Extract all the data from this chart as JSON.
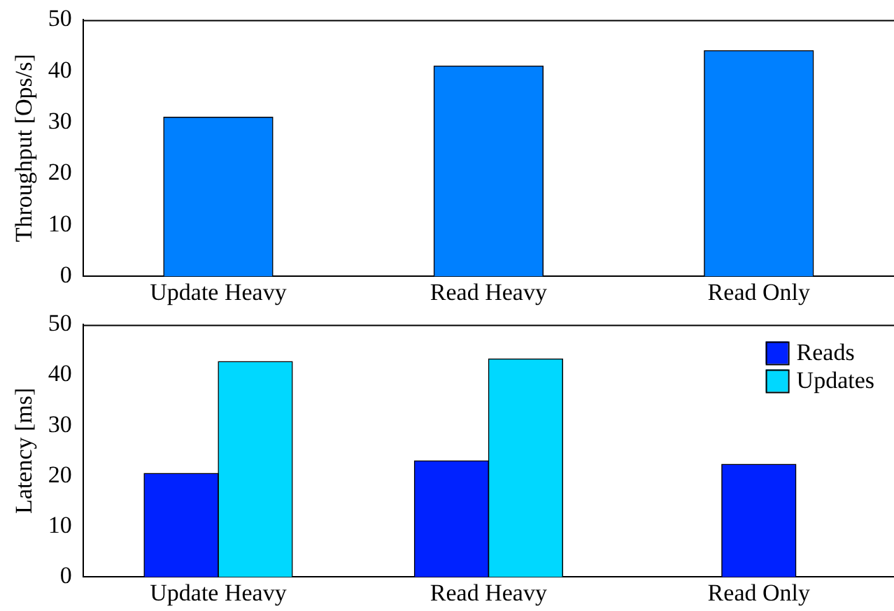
{
  "chart_data": [
    {
      "type": "bar",
      "ylabel": "Throughput [Ops/s]",
      "categories": [
        "Update Heavy",
        "Read Heavy",
        "Read Only"
      ],
      "values": [
        31,
        41,
        44
      ],
      "color": "#0080ff",
      "ylim": [
        0,
        50
      ],
      "yticks": [
        0,
        10,
        20,
        30,
        40,
        50
      ],
      "grid": false,
      "legend": false
    },
    {
      "type": "bar",
      "ylabel": "Latency [ms]",
      "categories": [
        "Update Heavy",
        "Read Heavy",
        "Read Only"
      ],
      "series": [
        {
          "name": "Reads",
          "color": "#0022ff",
          "values": [
            20.5,
            23,
            22.3
          ]
        },
        {
          "name": "Updates",
          "color": "#00d8ff",
          "values": [
            42.7,
            43.2,
            null
          ]
        }
      ],
      "ylim": [
        0,
        50
      ],
      "yticks": [
        0,
        10,
        20,
        30,
        40,
        50
      ],
      "grid": false,
      "legend": "top right"
    }
  ]
}
